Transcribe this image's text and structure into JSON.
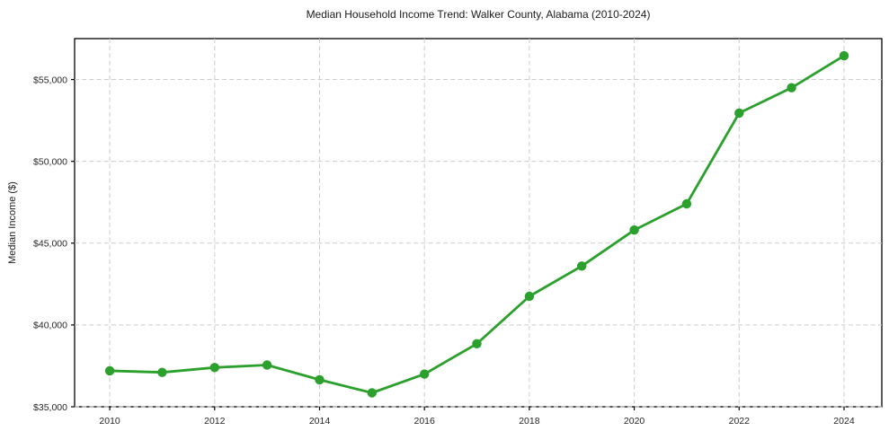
{
  "page": {
    "background": "#ffffff"
  },
  "chart_data": {
    "type": "line",
    "title": "Median Household Income Trend: Walker County, Alabama (2010-2024)",
    "xlabel": "",
    "ylabel": "Median Income ($)",
    "x": [
      2010,
      2011,
      2012,
      2013,
      2014,
      2015,
      2016,
      2017,
      2018,
      2019,
      2020,
      2021,
      2022,
      2023,
      2024
    ],
    "values": [
      37200,
      37100,
      37400,
      37550,
      36650,
      35850,
      37000,
      38850,
      41750,
      43600,
      45800,
      47400,
      52950,
      54500,
      56450
    ],
    "series_name": "Median Household Income",
    "xlim": [
      2009.33,
      2024.72
    ],
    "ylim": [
      35000,
      57500
    ],
    "xticks": [
      2010,
      2012,
      2014,
      2016,
      2018,
      2020,
      2022,
      2024
    ],
    "xtick_labels": [
      "2010",
      "2012",
      "2014",
      "2016",
      "2018",
      "2020",
      "2022",
      "2024"
    ],
    "yticks": [
      35000,
      40000,
      45000,
      50000,
      55000
    ],
    "ytick_labels": [
      "$35,000",
      "$40,000",
      "$45,000",
      "$50,000",
      "$55,000"
    ],
    "grid": true,
    "grid_style": "dashed",
    "legend": "none",
    "line_color": "#2ca02c",
    "marker_color": "#2ca02c",
    "marker_shape": "circle",
    "grid_color": "#cccccc",
    "axis_color": "#000000",
    "text_color": "#262626"
  }
}
